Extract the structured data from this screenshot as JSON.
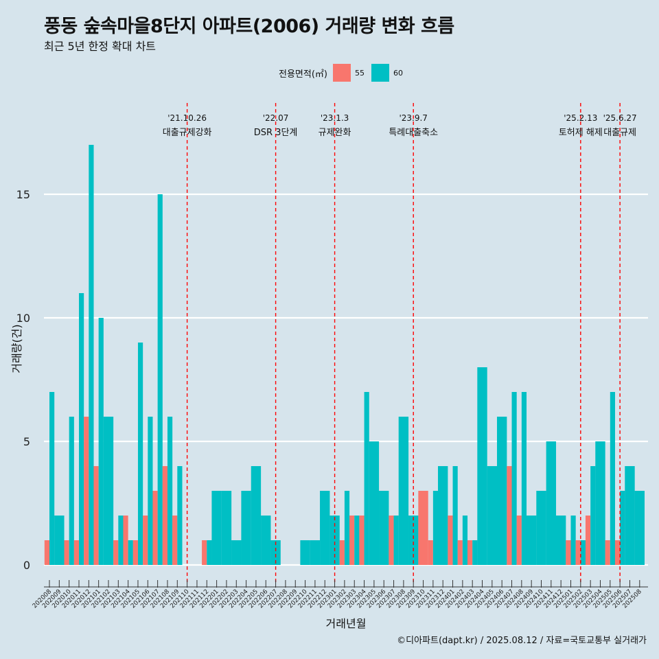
{
  "header": {
    "title": "풍동 숲속마을8단지 아파트(2006) 거래량 변화 흐름",
    "subtitle": "최근 5년 한정 확대 차트"
  },
  "legend": {
    "title": "전용면적(㎡)",
    "items": [
      {
        "label": "55",
        "color": "#f8766d"
      },
      {
        "label": "60",
        "color": "#00bfc4"
      }
    ]
  },
  "footer": {
    "source": "©디아파트(dapt.kr) / 2025.08.12 / 자료=국토교통부 실거래가"
  },
  "chart_data": {
    "type": "bar",
    "xlabel": "거래년월",
    "ylabel": "거래량(건)",
    "ylim": [
      0,
      17.5
    ],
    "yticks": [
      0,
      5,
      10,
      15
    ],
    "grid": true,
    "categories": [
      "202008",
      "202009",
      "202010",
      "202011",
      "202012",
      "202101",
      "202102",
      "202103",
      "202104",
      "202105",
      "202106",
      "202107",
      "202108",
      "202109",
      "202110",
      "202111",
      "202112",
      "202201",
      "202202",
      "202203",
      "202204",
      "202205",
      "202206",
      "202207",
      "202208",
      "202209",
      "202210",
      "202211",
      "202212",
      "202301",
      "202302",
      "202303",
      "202304",
      "202305",
      "202306",
      "202307",
      "202308",
      "202309",
      "202310",
      "202311",
      "202312",
      "202401",
      "202402",
      "202403",
      "202404",
      "202405",
      "202406",
      "202407",
      "202408",
      "202409",
      "202410",
      "202411",
      "202412",
      "202501",
      "202502",
      "202503",
      "202504",
      "202505",
      "202506",
      "202507",
      "202508"
    ],
    "series": [
      {
        "name": "55",
        "color": "#f8766d",
        "values": [
          1,
          0,
          1,
          1,
          6,
          4,
          0,
          1,
          2,
          1,
          2,
          3,
          4,
          2,
          0,
          0,
          1,
          0,
          0,
          0,
          0,
          0,
          0,
          0,
          0,
          0,
          0,
          0,
          0,
          0,
          1,
          2,
          2,
          0,
          0,
          2,
          0,
          0,
          3,
          1,
          0,
          2,
          1,
          1,
          0,
          0,
          0,
          4,
          2,
          0,
          0,
          0,
          0,
          1,
          1,
          2,
          0,
          1,
          1,
          0,
          0
        ]
      },
      {
        "name": "60",
        "color": "#00bfc4",
        "values": [
          7,
          2,
          6,
          11,
          17,
          10,
          6,
          2,
          1,
          9,
          6,
          15,
          6,
          4,
          0,
          0,
          1,
          3,
          3,
          1,
          3,
          4,
          2,
          1,
          0,
          0,
          1,
          1,
          3,
          2,
          3,
          2,
          7,
          5,
          3,
          2,
          6,
          2,
          0,
          3,
          4,
          4,
          2,
          1,
          8,
          4,
          6,
          7,
          7,
          2,
          3,
          5,
          2,
          2,
          1,
          4,
          5,
          7,
          3,
          4,
          3
        ]
      }
    ],
    "events": [
      {
        "date": "'21.10.26",
        "label": "대출규제강화",
        "at": "202110"
      },
      {
        "date": "'22.07",
        "label": "DSR 3단계",
        "at": "202207"
      },
      {
        "date": "'23.1.3",
        "label": "규제완화",
        "at": "202301"
      },
      {
        "date": "'23.9.7",
        "label": "특례대출축소",
        "at": "202309"
      },
      {
        "date": "'25.2.13",
        "label": "토허제 해제",
        "at": "202502"
      },
      {
        "date": "'25.6.27",
        "label": "대출규제",
        "at": "202506"
      }
    ]
  }
}
